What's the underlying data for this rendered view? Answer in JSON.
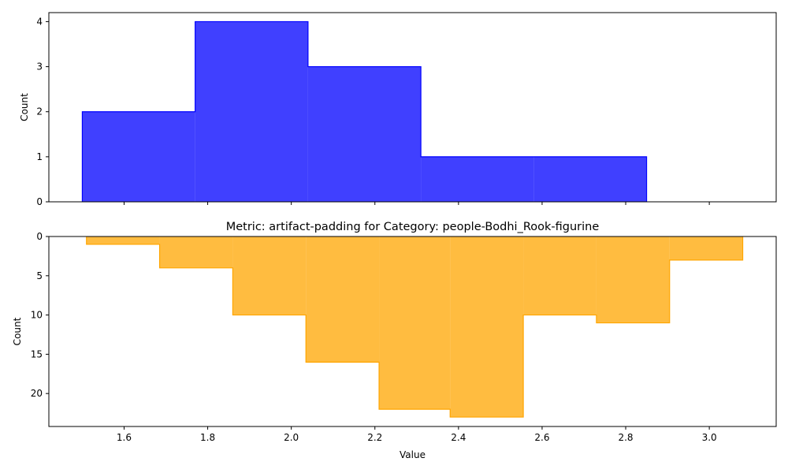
{
  "chart_data": [
    {
      "type": "histogram-step",
      "title": "",
      "xlabel": "",
      "ylabel": "Count",
      "color": "#0000ff",
      "fill_opacity": 0.75,
      "bin_edges": [
        1.5,
        1.77,
        2.04,
        2.31,
        2.58,
        2.85
      ],
      "counts": [
        2,
        4,
        3,
        1,
        1
      ],
      "xlim": [
        1.42,
        3.16
      ],
      "ylim": [
        0,
        4.2
      ],
      "y_inverted": false,
      "yticks": [
        0,
        1,
        2,
        3,
        4
      ],
      "show_xtick_labels": false
    },
    {
      "type": "histogram-step",
      "title": "Metric: artifact-padding for Category: people-Bodhi_Rook-figurine",
      "xlabel": "Value",
      "ylabel": "Count",
      "color": "#ffa500",
      "fill_opacity": 0.75,
      "bin_edges": [
        1.51,
        1.685,
        1.86,
        2.035,
        2.21,
        2.38,
        2.555,
        2.73,
        2.905,
        3.08
      ],
      "counts": [
        1,
        4,
        10,
        16,
        22,
        23,
        10,
        11,
        3
      ],
      "xlim": [
        1.42,
        3.16
      ],
      "ylim": [
        0,
        24.2
      ],
      "y_inverted": true,
      "yticks": [
        0,
        5,
        10,
        15,
        20
      ],
      "show_xtick_labels": true
    }
  ],
  "xticks": [
    1.6,
    1.8,
    2.0,
    2.2,
    2.4,
    2.6,
    2.8,
    3.0
  ],
  "xtick_labels": [
    "1.6",
    "1.8",
    "2.0",
    "2.2",
    "2.4",
    "2.6",
    "2.8",
    "3.0"
  ]
}
